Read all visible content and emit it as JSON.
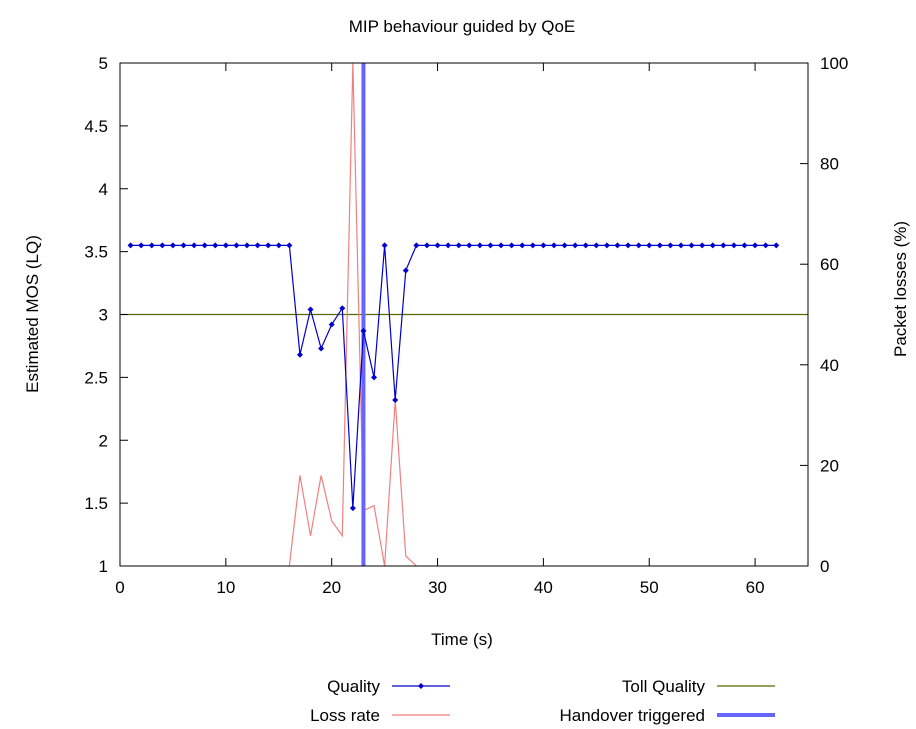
{
  "chart_data": {
    "type": "line",
    "title": "MIP behaviour guided by QoE",
    "xlabel": "Time (s)",
    "ylabel": "Estimated MOS (LQ)",
    "y2label": "Packet losses (%)",
    "xlim": [
      0,
      65
    ],
    "ylim": [
      1,
      5
    ],
    "y2lim": [
      0,
      100
    ],
    "x_ticks": [
      "0",
      "10",
      "20",
      "30",
      "40",
      "50",
      "60"
    ],
    "y_ticks": [
      "1",
      "1.5",
      "2",
      "2.5",
      "3",
      "3.5",
      "4",
      "4.5",
      "5"
    ],
    "y2_ticks": [
      "0",
      "20",
      "40",
      "60",
      "80",
      "100"
    ],
    "grid": false,
    "legend_position": "bottom",
    "series": [
      {
        "name": "Quality",
        "axis": "left",
        "color": "#0000cc",
        "marker": "diamond",
        "x": [
          1,
          2,
          3,
          4,
          5,
          6,
          7,
          8,
          9,
          10,
          11,
          12,
          13,
          14,
          15,
          16,
          17,
          18,
          19,
          20,
          21,
          22,
          23,
          24,
          25,
          26,
          27,
          28,
          29,
          30,
          31,
          32,
          33,
          34,
          35,
          36,
          37,
          38,
          39,
          40,
          41,
          42,
          43,
          44,
          45,
          46,
          47,
          48,
          49,
          50,
          51,
          52,
          53,
          54,
          55,
          56,
          57,
          58,
          59,
          60,
          61,
          62
        ],
        "values": [
          3.55,
          3.55,
          3.55,
          3.55,
          3.55,
          3.55,
          3.55,
          3.55,
          3.55,
          3.55,
          3.55,
          3.55,
          3.55,
          3.55,
          3.55,
          3.55,
          2.68,
          3.04,
          2.73,
          2.92,
          3.05,
          1.46,
          2.87,
          2.5,
          3.55,
          2.32,
          3.35,
          3.55,
          3.55,
          3.55,
          3.55,
          3.55,
          3.55,
          3.55,
          3.55,
          3.55,
          3.55,
          3.55,
          3.55,
          3.55,
          3.55,
          3.55,
          3.55,
          3.55,
          3.55,
          3.55,
          3.55,
          3.55,
          3.55,
          3.55,
          3.55,
          3.55,
          3.55,
          3.55,
          3.55,
          3.55,
          3.55,
          3.55,
          3.55,
          3.55,
          3.55,
          3.55
        ]
      },
      {
        "name": "Loss rate",
        "axis": "right",
        "color": "#f08080",
        "x": [
          16,
          17,
          18,
          19,
          20,
          21,
          22,
          23,
          24,
          25,
          26,
          27,
          28
        ],
        "values": [
          0,
          18,
          6,
          18,
          9,
          6,
          100,
          11,
          12,
          0,
          33,
          2,
          0
        ]
      },
      {
        "name": "Toll Quality",
        "axis": "left",
        "color": "#556b00",
        "x": [
          0,
          65
        ],
        "values": [
          3,
          3
        ]
      },
      {
        "name": "Handover triggered",
        "axis": "left",
        "color": "#6666ff",
        "x": [
          23,
          23
        ],
        "values": [
          1,
          5
        ]
      }
    ]
  }
}
